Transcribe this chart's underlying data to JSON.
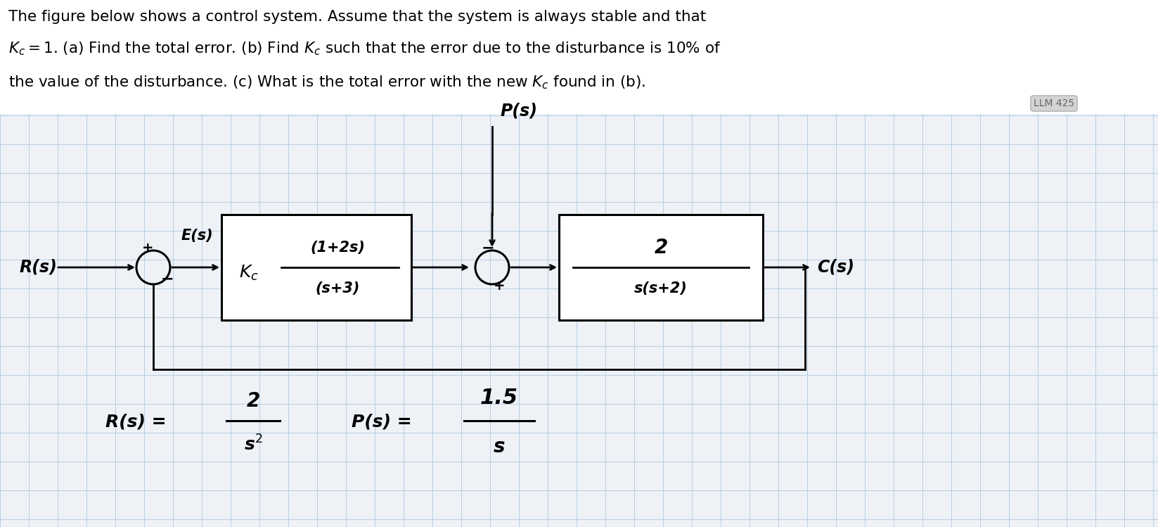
{
  "background_color": "#eef2f7",
  "grid_color": "#aec8e0",
  "text_color": "#000000",
  "title_lines": [
    "The figure below shows a control system. Assume that the system is always stable and that",
    "$K_c = 1$. (a) Find the total error. (b) Find $K_c$ such that the error due to the disturbance is 10% of",
    "the value of the disturbance. (c) What is the total error with the new $K_c$ found in (b)."
  ],
  "watermark": "LLM 425",
  "diagram": {
    "R_label": "R(s)",
    "E_label": "E(s)",
    "P_label": "P(s)",
    "C_label": "C(s)",
    "block1_kc": "$K_c$",
    "block1_top": "(1+2s)",
    "block1_bot": "(s+3)",
    "block2_top": "2",
    "block2_bot": "s(s+2)",
    "Rs_top": "2",
    "Rs_bot": "s$^2$",
    "Ps_top": "1.5",
    "Ps_bot": "s"
  }
}
